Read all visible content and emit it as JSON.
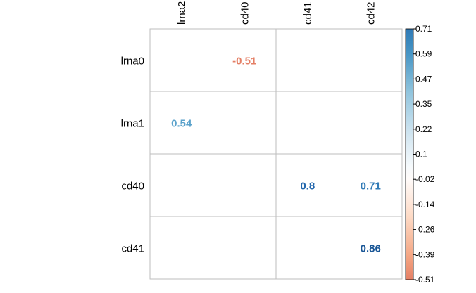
{
  "chart_data": {
    "type": "heatmap",
    "rows": [
      "lrna0",
      "lrna1",
      "cd40",
      "cd41"
    ],
    "cols": [
      "lrna2",
      "cd40",
      "cd41",
      "cd42"
    ],
    "cells": [
      {
        "row": "lrna0",
        "col": "cd40",
        "value": -0.51,
        "label": "-0.51"
      },
      {
        "row": "lrna1",
        "col": "lrna2",
        "value": 0.54,
        "label": "0.54"
      },
      {
        "row": "cd40",
        "col": "cd41",
        "value": 0.8,
        "label": "0.8"
      },
      {
        "row": "cd40",
        "col": "cd42",
        "value": 0.71,
        "label": "0.71"
      },
      {
        "row": "cd41",
        "col": "cd42",
        "value": 0.86,
        "label": "0.86"
      }
    ],
    "colorbar": {
      "min": -0.51,
      "max": 0.71,
      "ticks": [
        "0.71",
        "0.59",
        "0.47",
        "0.35",
        "0.22",
        "0.1",
        "-0.02",
        "-0.14",
        "-0.26",
        "-0.39",
        "-0.51"
      ],
      "palette": [
        "#67001F",
        "#B2182B",
        "#D6604D",
        "#F4A582",
        "#FDDBC7",
        "#FFFFFF",
        "#D1E5F0",
        "#92C5DE",
        "#4393C3",
        "#2166AC",
        "#053061"
      ]
    },
    "grid": true,
    "legend": "right"
  }
}
